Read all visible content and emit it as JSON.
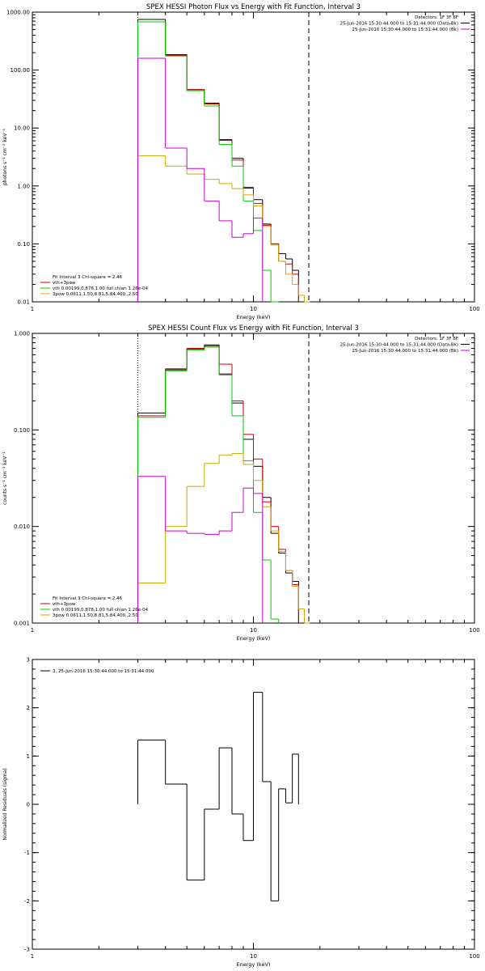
{
  "chart_data": [
    {
      "type": "line",
      "title": "SPEX HESSI Photon Flux vs Energy with Fit Function, Interval 3",
      "xlabel": "Energy (keV)",
      "ylabel": "photons s⁻¹ cm⁻² keV⁻¹",
      "xscale": "log",
      "yscale": "log",
      "xlim": [
        1,
        100
      ],
      "ylim": [
        0.01,
        1000
      ],
      "xticks": [
        {
          "v": 1,
          "label": "1"
        },
        {
          "v": 10,
          "label": "10"
        },
        {
          "v": 100,
          "label": "100"
        }
      ],
      "yticks": [
        {
          "v": 0.01,
          "label": "0.01"
        },
        {
          "v": 0.1,
          "label": "0.10"
        },
        {
          "v": 1,
          "label": "1.00"
        },
        {
          "v": 10,
          "label": "10.00"
        },
        {
          "v": 100,
          "label": "100.00"
        },
        {
          "v": 1000,
          "label": "1000.00"
        }
      ],
      "edges": [
        3,
        4,
        5,
        6,
        7,
        8,
        9,
        10,
        11,
        12,
        13,
        14,
        15,
        16,
        17,
        18,
        19,
        20
      ],
      "vlines": [
        {
          "x": 3,
          "style": "dotted",
          "color": "#000000"
        },
        {
          "x": 17.8,
          "style": "dashed",
          "color": "#000000"
        }
      ],
      "legend_top": [
        "Detectors: 1F 3F 8F",
        "25-Jun-2016 15:30:44.000 to 15:31:44.000 (Data-Bk)",
        "25-Jun-2016 15:30:44.000 to 15:31:44.000 (Bk)"
      ],
      "legend_top_colors": [
        "#000000",
        "#000000",
        "#cc00cc"
      ],
      "legend_bottom": [
        "Fit Interval 3   Chi-square = 2.46",
        "vth+3pow",
        "vth 0.00199,0.878,1.00  full chian 1.26e-04",
        "3pow 0.0611,1.50,8.81,5.84,400.,2.50"
      ],
      "legend_bottom_colors": [
        "#000000",
        "#cc0000",
        "#00cc00",
        "#ccaa00"
      ],
      "series": [
        {
          "name": "25-Jun-2016 15:30:44.000 to 15:31:44.000 (Data-Bk)",
          "color": "#000000",
          "values": [
            750,
            185,
            46,
            27,
            6.3,
            3.0,
            0.92,
            0.58,
            0.22,
            0.1,
            0.068,
            0.055,
            0.035,
            null,
            null,
            null,
            null
          ]
        },
        {
          "name": "vth+3pow",
          "color": "#cc0000",
          "values": [
            680,
            180,
            46,
            26,
            6.1,
            2.8,
            0.95,
            0.5,
            0.21,
            0.1,
            0.05,
            0.045,
            0.03,
            null,
            null,
            null,
            null
          ]
        },
        {
          "name": "vth",
          "color": "#00cc00",
          "values": [
            680,
            175,
            44,
            24,
            5.2,
            2.2,
            0.55,
            0.17,
            0.035,
            0.008,
            null,
            null,
            null,
            null,
            null,
            null,
            null
          ]
        },
        {
          "name": "3pow",
          "color": "#ccaa00",
          "values": [
            3.3,
            2.2,
            1.6,
            1.3,
            1.1,
            0.9,
            0.7,
            0.45,
            0.2,
            0.095,
            0.05,
            0.03,
            0.02,
            0.013,
            0.008,
            null,
            null
          ]
        },
        {
          "name": "25-Jun-2016 15:30:44.000 to 15:31:44.000 (Bk)",
          "color": "#cc00cc",
          "values": [
            160,
            4.5,
            2.0,
            0.55,
            0.25,
            0.13,
            0.15,
            0.28,
            null,
            null,
            null,
            null,
            null,
            null,
            null,
            null,
            null
          ]
        }
      ]
    },
    {
      "type": "line",
      "title": "SPEX HESSI Count Flux vs Energy with Fit Function, Interval 3",
      "xlabel": "Energy (keV)",
      "ylabel": "counts s⁻¹ cm⁻² keV⁻¹",
      "xscale": "log",
      "yscale": "log",
      "xlim": [
        1,
        100
      ],
      "ylim": [
        0.001,
        1
      ],
      "xticks": [
        {
          "v": 1,
          "label": "1"
        },
        {
          "v": 10,
          "label": "10"
        },
        {
          "v": 100,
          "label": "100"
        }
      ],
      "yticks": [
        {
          "v": 0.001,
          "label": "0.001"
        },
        {
          "v": 0.01,
          "label": "0.010"
        },
        {
          "v": 0.1,
          "label": "0.100"
        },
        {
          "v": 1,
          "label": "1.000"
        }
      ],
      "edges": [
        3,
        4,
        5,
        6,
        7,
        8,
        9,
        10,
        11,
        12,
        13,
        14,
        15,
        16,
        17,
        18,
        19,
        20
      ],
      "vlines": [
        {
          "x": 3,
          "style": "dotted",
          "color": "#000000"
        },
        {
          "x": 17.8,
          "style": "dashed",
          "color": "#000000"
        }
      ],
      "legend_top": [
        "Detectors: 1F 3F 8F",
        "25-Jun-2016 15:30:44.000 to 15:31:44.000 (Data-Bk)",
        "25-Jun-2016 15:30:44.000 to 15:31:44.000 (Bk)"
      ],
      "legend_top_colors": [
        "#000000",
        "#000000",
        "#cc00cc"
      ],
      "legend_bottom": [
        "Fit Interval 3   Chi-square = 2.46",
        "vth+3pow",
        "vth 0.00199,0.878,1.00  full chian 1.26e-04",
        "3pow 0.0611,1.50,8.81,5.84,400.,2.50"
      ],
      "legend_bottom_colors": [
        "#000000",
        "#cc0000",
        "#00cc00",
        "#ccaa00"
      ],
      "series": [
        {
          "name": "25-Jun-2016 15:30:44.000 to 15:31:44.000 (Data-Bk)",
          "color": "#000000",
          "values": [
            0.15,
            0.42,
            0.69,
            0.76,
            0.38,
            0.19,
            0.08,
            0.042,
            0.02,
            0.0085,
            0.0053,
            0.0033,
            0.0027,
            null,
            null,
            null,
            null
          ]
        },
        {
          "name": "vth+3pow",
          "color": "#cc0000",
          "values": [
            0.14,
            0.43,
            0.7,
            0.74,
            0.48,
            0.2,
            0.09,
            0.05,
            0.018,
            0.01,
            0.0058,
            0.0035,
            0.0025,
            null,
            null,
            null,
            null
          ]
        },
        {
          "name": "vth",
          "color": "#00cc00",
          "values": [
            0.135,
            0.41,
            0.67,
            0.72,
            0.37,
            0.14,
            0.048,
            0.014,
            0.0045,
            0.0011,
            null,
            null,
            null,
            null,
            null,
            null,
            null
          ]
        },
        {
          "name": "3pow",
          "color": "#ccaa00",
          "values": [
            0.0026,
            0.01,
            0.026,
            0.045,
            0.055,
            0.057,
            0.044,
            0.03,
            0.016,
            0.009,
            0.0055,
            0.0035,
            0.0024,
            0.0014,
            0.001,
            null,
            null
          ]
        },
        {
          "name": "25-Jun-2016 15:30:44.000 to 15:31:44.000 (Bk)",
          "color": "#cc00cc",
          "values": [
            0.033,
            0.009,
            0.0085,
            0.0083,
            0.009,
            0.014,
            0.025,
            0.022,
            null,
            null,
            null,
            null,
            null,
            null,
            null,
            null,
            null
          ]
        }
      ]
    },
    {
      "type": "line",
      "title": "",
      "xlabel": "Energy (keV)",
      "ylabel": "Normalized Residuals (sigma)",
      "xscale": "log",
      "yscale": "linear",
      "xlim": [
        1,
        100
      ],
      "ylim": [
        -3,
        3
      ],
      "xticks": [
        {
          "v": 1,
          "label": "1"
        },
        {
          "v": 10,
          "label": "10"
        },
        {
          "v": 100,
          "label": "100"
        }
      ],
      "yticks": [
        {
          "v": -3,
          "label": "-3"
        },
        {
          "v": -2,
          "label": "-2"
        },
        {
          "v": -1,
          "label": "-1"
        },
        {
          "v": 0,
          "label": "0"
        },
        {
          "v": 1,
          "label": "1"
        },
        {
          "v": 2,
          "label": "2"
        },
        {
          "v": 3,
          "label": "3"
        }
      ],
      "edges": [
        3,
        4,
        5,
        6,
        7,
        8,
        9,
        10,
        11,
        12,
        13,
        14,
        15,
        16,
        17,
        18
      ],
      "vlines": [],
      "legend_top": [
        "3, 25-Jun-2016 15:30:44.000 to 15:31:44.000"
      ],
      "legend_top_colors": [
        "#000000"
      ],
      "legend_bottom": [],
      "legend_bottom_colors": [],
      "series": [
        {
          "name": "3, 25-Jun-2016 15:30:44.000 to 15:31:44.000",
          "color": "#000000",
          "values": [
            1.33,
            0.42,
            -1.57,
            -0.1,
            1.17,
            -0.2,
            -0.75,
            2.32,
            0.47,
            -2.0,
            0.32,
            0.03,
            1.04
          ]
        }
      ]
    }
  ]
}
